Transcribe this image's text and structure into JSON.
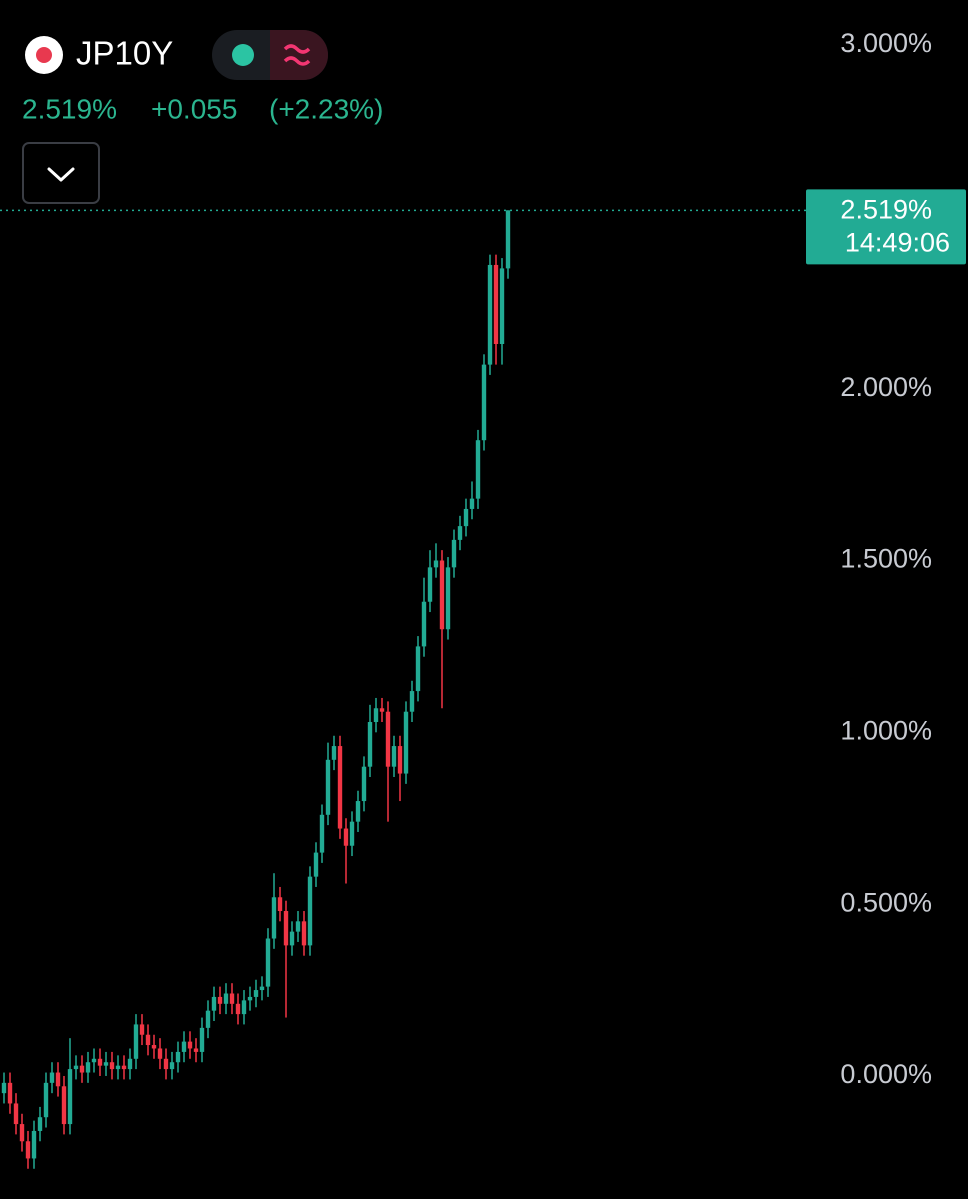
{
  "header": {
    "symbol": "JP10Y",
    "price": "2.519%",
    "change": "+0.055",
    "change_pct": "(+2.23%)"
  },
  "chart_data": {
    "type": "candlestick",
    "up_color": "#22ab94",
    "down_color": "#f23645",
    "ylim": [
      -0.358,
      3.131
    ],
    "yticks": [
      {
        "value": 0,
        "label": "0.000%"
      },
      {
        "value": 0.5,
        "label": "0.500%"
      },
      {
        "value": 1,
        "label": "1.000%"
      },
      {
        "value": 1.5,
        "label": "1.500%"
      },
      {
        "value": 2,
        "label": "2.000%"
      },
      {
        "value": 2.5,
        "label": "2.500%"
      },
      {
        "value": 3,
        "label": "3.000%"
      }
    ],
    "last_price": {
      "value": 2.519,
      "label": "2.519%"
    },
    "last_time": "14:49:06",
    "open": [
      -0.05,
      -0.02,
      -0.08,
      -0.14,
      -0.19,
      -0.24,
      -0.16,
      -0.12,
      -0.02,
      0.01,
      -0.03,
      -0.14,
      0.02,
      0.03,
      0.01,
      0.04,
      0.05,
      0.03,
      0.04,
      0.02,
      0.03,
      0.02,
      0.05,
      0.15,
      0.12,
      0.09,
      0.08,
      0.05,
      0.02,
      0.04,
      0.07,
      0.1,
      0.08,
      0.07,
      0.14,
      0.19,
      0.23,
      0.21,
      0.24,
      0.21,
      0.18,
      0.22,
      0.23,
      0.25,
      0.26,
      0.4,
      0.52,
      0.48,
      0.38,
      0.42,
      0.45,
      0.38,
      0.58,
      0.65,
      0.76,
      0.92,
      0.96,
      0.72,
      0.67,
      0.74,
      0.8,
      0.9,
      1.03,
      1.07,
      1.06,
      0.9,
      0.96,
      0.88,
      1.06,
      1.12,
      1.25,
      1.38,
      1.48,
      1.5,
      1.3,
      1.48,
      1.56,
      1.6,
      1.65,
      1.68,
      1.85,
      2.07,
      2.36,
      2.13,
      2.35
    ],
    "high": [
      0.01,
      0.01,
      -0.05,
      -0.11,
      -0.16,
      -0.13,
      -0.09,
      0.01,
      0.04,
      0.04,
      0.0,
      0.11,
      0.06,
      0.06,
      0.07,
      0.08,
      0.08,
      0.07,
      0.07,
      0.06,
      0.06,
      0.08,
      0.18,
      0.18,
      0.15,
      0.12,
      0.11,
      0.08,
      0.07,
      0.1,
      0.13,
      0.13,
      0.11,
      0.17,
      0.22,
      0.26,
      0.26,
      0.27,
      0.27,
      0.24,
      0.25,
      0.26,
      0.28,
      0.29,
      0.43,
      0.59,
      0.55,
      0.51,
      0.45,
      0.48,
      0.48,
      0.61,
      0.68,
      0.79,
      0.97,
      0.99,
      0.99,
      0.75,
      0.77,
      0.83,
      0.93,
      1.08,
      1.1,
      1.1,
      1.09,
      0.99,
      0.99,
      1.09,
      1.15,
      1.28,
      1.45,
      1.53,
      1.55,
      1.53,
      1.51,
      1.59,
      1.63,
      1.68,
      1.73,
      1.88,
      2.1,
      2.39,
      2.39,
      2.38,
      2.519
    ],
    "low": [
      -0.08,
      -0.11,
      -0.17,
      -0.22,
      -0.27,
      -0.27,
      -0.19,
      -0.15,
      -0.05,
      -0.06,
      -0.17,
      -0.17,
      -0.01,
      -0.02,
      -0.02,
      0.01,
      0.0,
      0.0,
      -0.01,
      -0.01,
      -0.01,
      -0.01,
      0.02,
      0.09,
      0.06,
      0.05,
      0.02,
      -0.01,
      -0.01,
      0.01,
      0.04,
      0.05,
      0.04,
      0.04,
      0.11,
      0.16,
      0.18,
      0.18,
      0.18,
      0.15,
      0.15,
      0.19,
      0.2,
      0.22,
      0.23,
      0.37,
      0.45,
      0.17,
      0.35,
      0.39,
      0.35,
      0.35,
      0.55,
      0.62,
      0.73,
      0.89,
      0.69,
      0.56,
      0.64,
      0.71,
      0.77,
      0.87,
      1.0,
      1.03,
      0.74,
      0.87,
      0.8,
      0.85,
      1.03,
      1.09,
      1.22,
      1.35,
      1.45,
      1.07,
      1.27,
      1.45,
      1.53,
      1.57,
      1.62,
      1.65,
      1.82,
      2.04,
      2.07,
      2.07,
      2.32
    ],
    "close": [
      -0.02,
      -0.08,
      -0.14,
      -0.19,
      -0.24,
      -0.16,
      -0.12,
      -0.02,
      0.01,
      -0.03,
      -0.14,
      0.02,
      0.03,
      0.01,
      0.04,
      0.05,
      0.03,
      0.04,
      0.02,
      0.03,
      0.02,
      0.05,
      0.15,
      0.12,
      0.09,
      0.08,
      0.05,
      0.02,
      0.04,
      0.07,
      0.1,
      0.08,
      0.07,
      0.14,
      0.19,
      0.23,
      0.21,
      0.24,
      0.21,
      0.18,
      0.22,
      0.23,
      0.25,
      0.26,
      0.4,
      0.52,
      0.48,
      0.38,
      0.42,
      0.45,
      0.38,
      0.58,
      0.65,
      0.76,
      0.92,
      0.96,
      0.72,
      0.67,
      0.74,
      0.8,
      0.9,
      1.03,
      1.07,
      1.06,
      0.9,
      0.96,
      0.88,
      1.06,
      1.12,
      1.25,
      1.38,
      1.48,
      1.5,
      1.3,
      1.48,
      1.56,
      1.6,
      1.65,
      1.68,
      1.85,
      2.07,
      2.36,
      2.13,
      2.35,
      2.519
    ]
  }
}
